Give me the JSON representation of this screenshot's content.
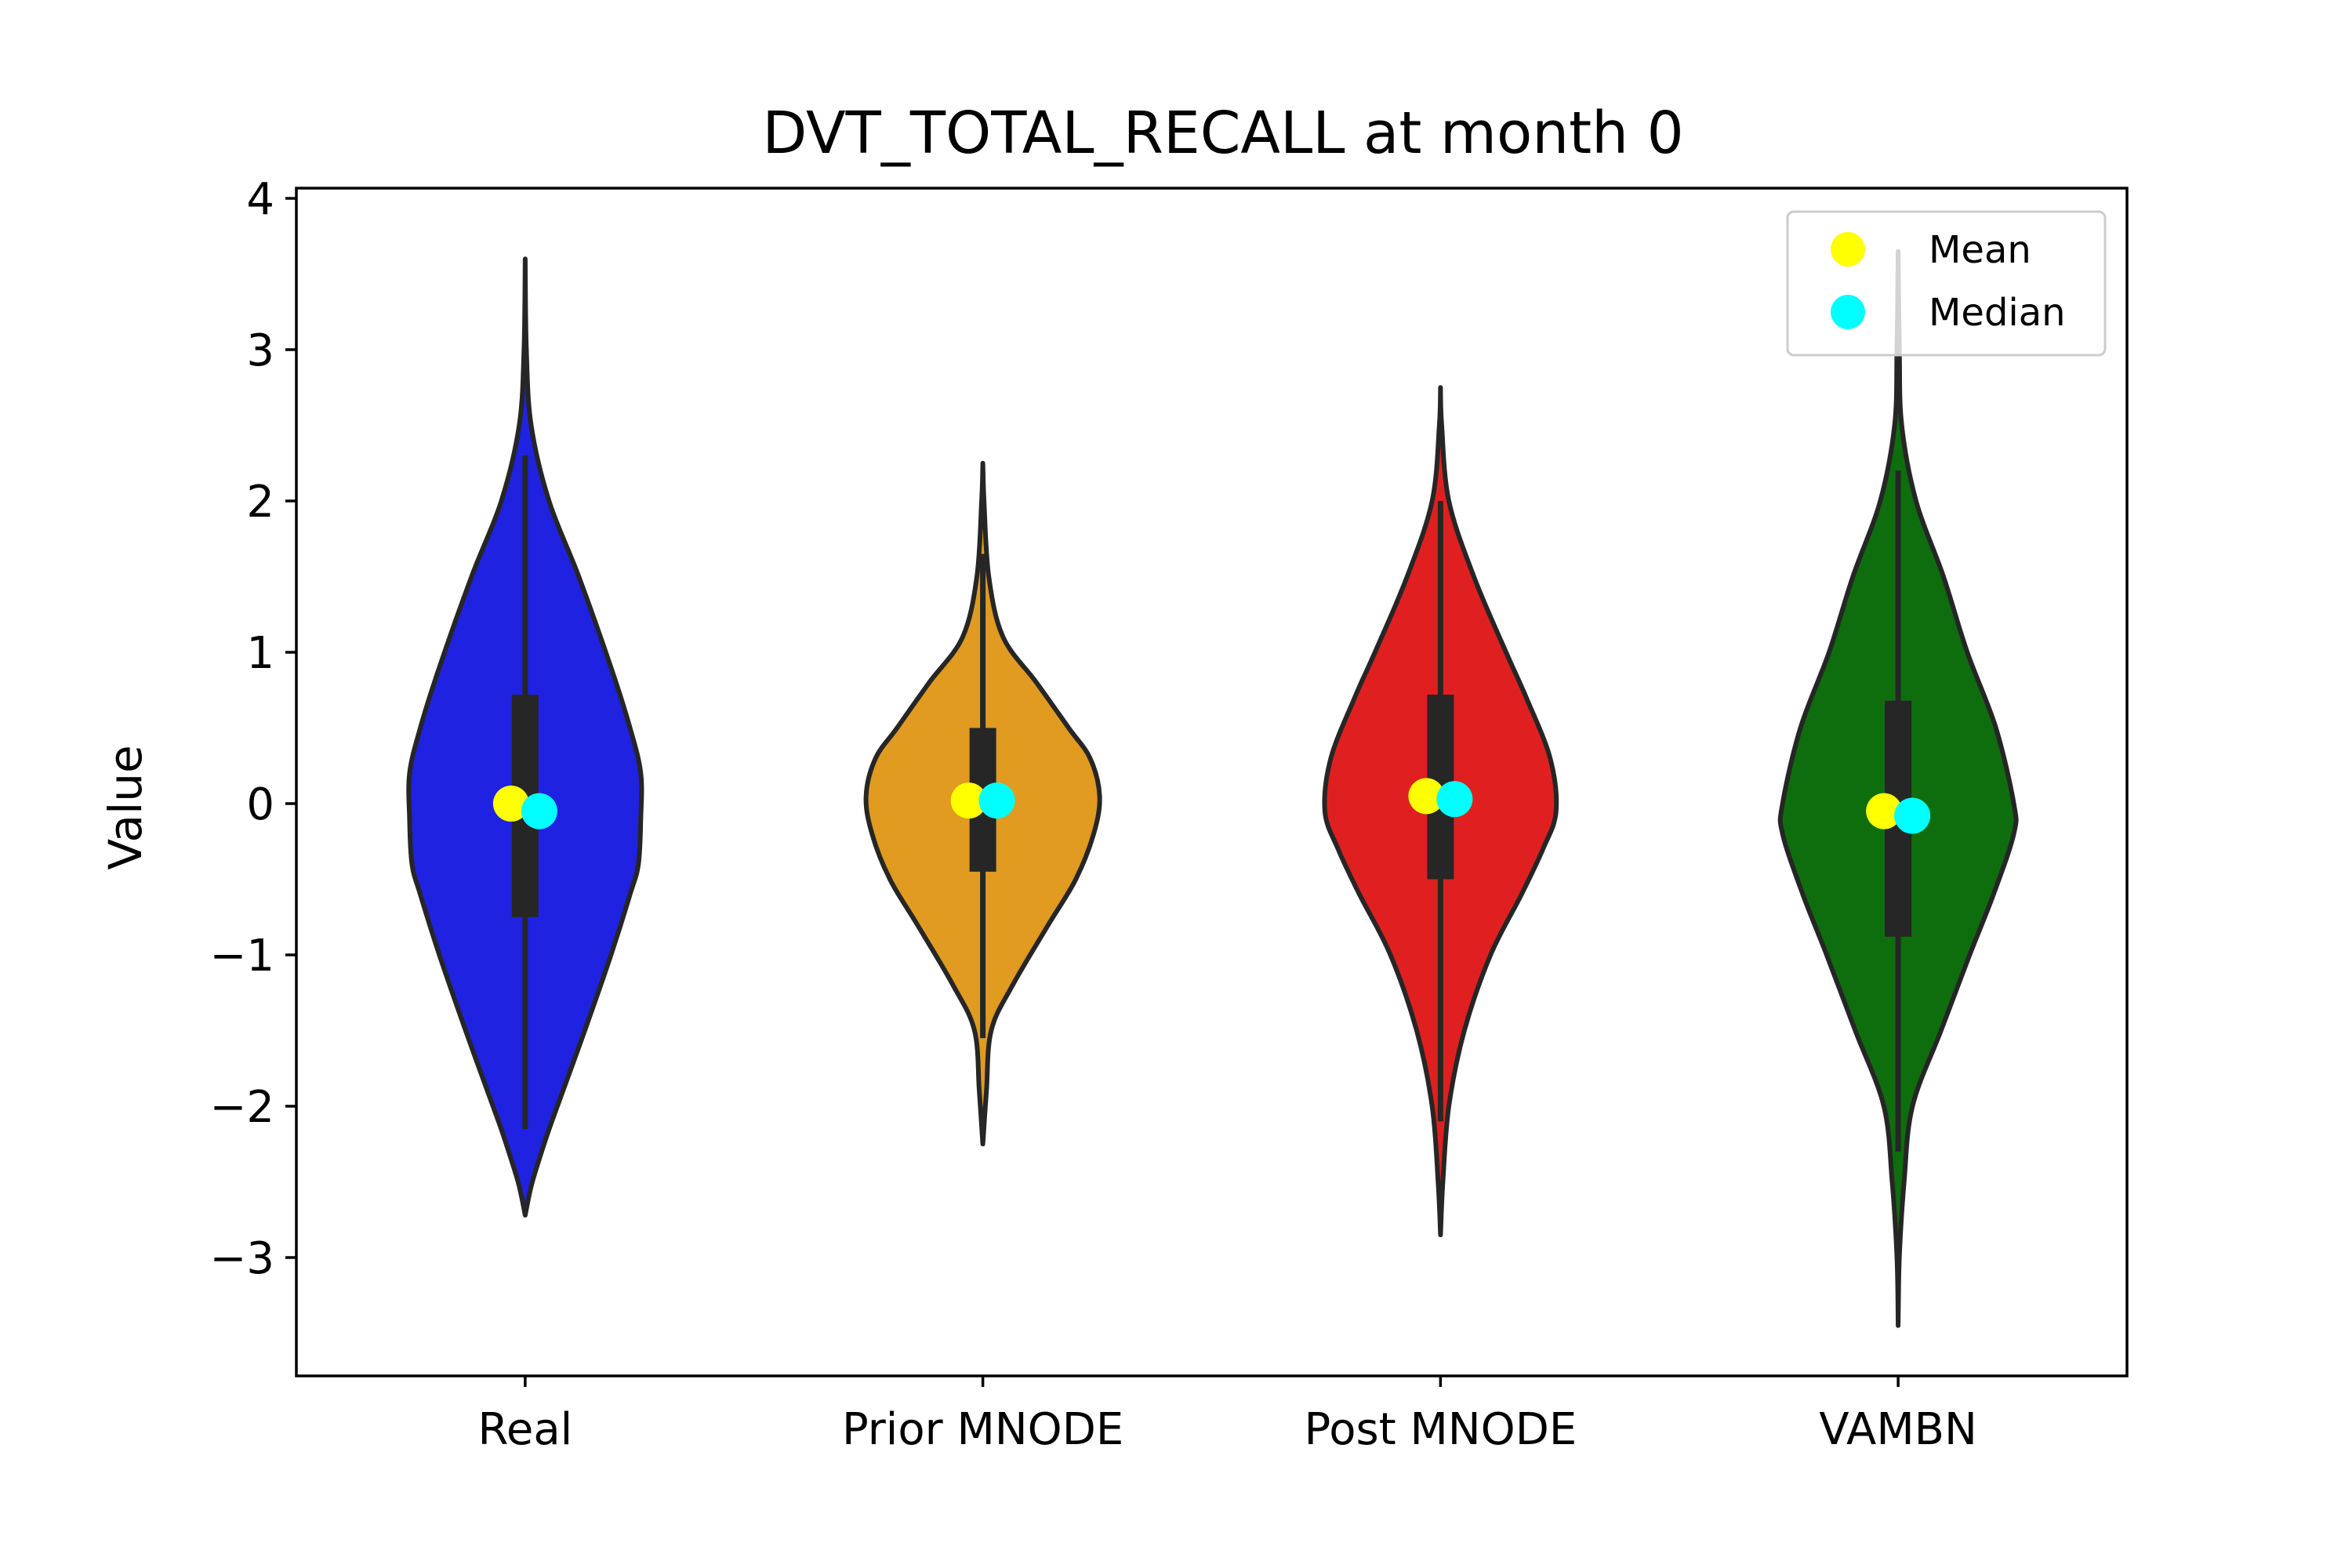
{
  "chart_data": {
    "type": "violin",
    "title": "DVT_TOTAL_RECALL at month 0",
    "xlabel": "",
    "ylabel": "Value",
    "ylim": [
      -3.8,
      4.05
    ],
    "yticks": [
      -3,
      -2,
      -1,
      0,
      1,
      2,
      3,
      4
    ],
    "ytick_labels": [
      "−3",
      "−2",
      "−1",
      "0",
      "1",
      "2",
      "3",
      "4"
    ],
    "grid": false,
    "legend_position": "top-right",
    "legend": [
      {
        "label": "Mean",
        "color": "#ffff00"
      },
      {
        "label": "Median",
        "color": "#00ffff"
      }
    ],
    "categories": [
      "Real",
      "Prior MNODE",
      "Post MNODE",
      "VAMBN"
    ],
    "series": [
      {
        "category": "Real",
        "color": "#1f22e0",
        "min": -2.72,
        "max": 3.6,
        "q1": -0.75,
        "q3": 0.72,
        "whisker_low": -2.15,
        "whisker_high": 2.3,
        "mean": 0.0,
        "median": -0.05,
        "density": [
          [
            -2.72,
            0.0
          ],
          [
            -2.5,
            0.06
          ],
          [
            -2.2,
            0.18
          ],
          [
            -2.0,
            0.27
          ],
          [
            -1.5,
            0.5
          ],
          [
            -1.0,
            0.72
          ],
          [
            -0.6,
            0.88
          ],
          [
            -0.4,
            0.95
          ],
          [
            -0.1,
            0.97
          ],
          [
            0.2,
            0.97
          ],
          [
            0.5,
            0.88
          ],
          [
            0.9,
            0.72
          ],
          [
            1.5,
            0.45
          ],
          [
            2.0,
            0.2
          ],
          [
            2.5,
            0.05
          ],
          [
            3.0,
            0.01
          ],
          [
            3.6,
            0.0
          ]
        ]
      },
      {
        "category": "Prior MNODE",
        "color": "#e09b20",
        "min": -2.25,
        "max": 2.25,
        "q1": -0.45,
        "q3": 0.5,
        "whisker_low": -1.55,
        "whisker_high": 1.65,
        "mean": 0.02,
        "median": 0.02,
        "density": [
          [
            -2.25,
            0.0
          ],
          [
            -1.9,
            0.03
          ],
          [
            -1.5,
            0.07
          ],
          [
            -1.2,
            0.25
          ],
          [
            -0.8,
            0.55
          ],
          [
            -0.5,
            0.78
          ],
          [
            -0.2,
            0.93
          ],
          [
            0.05,
            0.98
          ],
          [
            0.3,
            0.9
          ],
          [
            0.5,
            0.72
          ],
          [
            0.8,
            0.45
          ],
          [
            1.1,
            0.17
          ],
          [
            1.5,
            0.05
          ],
          [
            2.0,
            0.01
          ],
          [
            2.25,
            0.0
          ]
        ]
      },
      {
        "category": "Post MNODE",
        "color": "#e02020",
        "min": -2.85,
        "max": 2.75,
        "q1": -0.5,
        "q3": 0.72,
        "whisker_low": -2.1,
        "whisker_high": 2.0,
        "mean": 0.05,
        "median": 0.03,
        "density": [
          [
            -2.85,
            0.0
          ],
          [
            -2.5,
            0.02
          ],
          [
            -2.0,
            0.07
          ],
          [
            -1.5,
            0.2
          ],
          [
            -1.0,
            0.42
          ],
          [
            -0.6,
            0.68
          ],
          [
            -0.3,
            0.86
          ],
          [
            -0.05,
            0.97
          ],
          [
            0.3,
            0.92
          ],
          [
            0.7,
            0.72
          ],
          [
            1.0,
            0.55
          ],
          [
            1.5,
            0.28
          ],
          [
            2.0,
            0.07
          ],
          [
            2.5,
            0.01
          ],
          [
            2.75,
            0.0
          ]
        ]
      },
      {
        "category": "VAMBN",
        "color": "#0e6e0e",
        "min": -3.45,
        "max": 3.65,
        "q1": -0.88,
        "q3": 0.68,
        "whisker_low": -2.3,
        "whisker_high": 2.2,
        "mean": -0.05,
        "median": -0.08,
        "density": [
          [
            -3.45,
            0.0
          ],
          [
            -3.0,
            0.01
          ],
          [
            -2.5,
            0.05
          ],
          [
            -2.0,
            0.12
          ],
          [
            -1.5,
            0.36
          ],
          [
            -1.0,
            0.6
          ],
          [
            -0.6,
            0.8
          ],
          [
            -0.2,
            0.97
          ],
          [
            0.0,
            0.97
          ],
          [
            0.5,
            0.82
          ],
          [
            1.0,
            0.58
          ],
          [
            1.5,
            0.38
          ],
          [
            2.0,
            0.15
          ],
          [
            2.5,
            0.03
          ],
          [
            3.0,
            0.01
          ],
          [
            3.65,
            0.0
          ]
        ]
      }
    ]
  }
}
